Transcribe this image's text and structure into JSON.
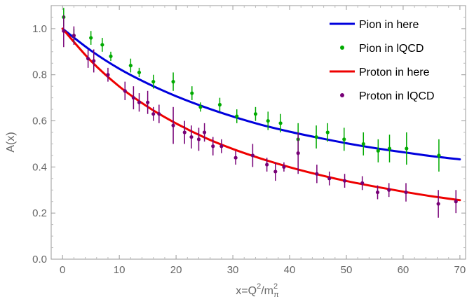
{
  "chart_data": {
    "type": "scatter",
    "title": "",
    "ylabel": "A(x)",
    "xlabel": {
      "prefix": "x=Q",
      "exp1": "2",
      "mid": "/m",
      "sub": "π",
      "exp2": "2"
    },
    "xlim": [
      -2,
      71
    ],
    "ylim": [
      0,
      1.1
    ],
    "xticks": [
      0,
      10,
      20,
      30,
      40,
      50,
      60,
      70
    ],
    "xtick_labels": [
      "0",
      "10",
      "20",
      "30",
      "40",
      "50",
      "60",
      "70"
    ],
    "yticks": [
      0.0,
      0.2,
      0.4,
      0.6,
      0.8,
      1.0
    ],
    "ytick_labels": [
      "0.0",
      "0.2",
      "0.4",
      "0.6",
      "0.8",
      "1.0"
    ],
    "grid": false,
    "legend_position": "top-right",
    "series": [
      {
        "name": "Pion in here",
        "kind": "line",
        "color": "#0000dd",
        "x": [
          0,
          5,
          10,
          15,
          20,
          25,
          30,
          35,
          40,
          45,
          50,
          55,
          60,
          65,
          70
        ],
        "y": [
          1.0,
          0.905,
          0.826,
          0.762,
          0.707,
          0.66,
          0.619,
          0.583,
          0.553,
          0.527,
          0.503,
          0.482,
          0.464,
          0.447,
          0.433
        ]
      },
      {
        "name": "Pion in lQCD",
        "kind": "points",
        "color": "#00aa00",
        "points": [
          {
            "x": 0.2,
            "y": 1.05,
            "err": 0.04
          },
          {
            "x": 2.0,
            "y": 0.97,
            "err": 0.03
          },
          {
            "x": 5.0,
            "y": 0.96,
            "err": 0.03
          },
          {
            "x": 7.0,
            "y": 0.93,
            "err": 0.03
          },
          {
            "x": 8.5,
            "y": 0.88,
            "err": 0.02
          },
          {
            "x": 12.0,
            "y": 0.84,
            "err": 0.03
          },
          {
            "x": 13.5,
            "y": 0.81,
            "err": 0.02
          },
          {
            "x": 16.0,
            "y": 0.77,
            "err": 0.03
          },
          {
            "x": 19.5,
            "y": 0.77,
            "err": 0.04
          },
          {
            "x": 22.8,
            "y": 0.72,
            "err": 0.03
          },
          {
            "x": 24.3,
            "y": 0.66,
            "err": 0.02
          },
          {
            "x": 27.7,
            "y": 0.67,
            "err": 0.03
          },
          {
            "x": 30.7,
            "y": 0.62,
            "err": 0.03
          },
          {
            "x": 34.0,
            "y": 0.63,
            "err": 0.03
          },
          {
            "x": 36.2,
            "y": 0.6,
            "err": 0.04
          },
          {
            "x": 38.4,
            "y": 0.59,
            "err": 0.04
          },
          {
            "x": 41.5,
            "y": 0.52,
            "err": 0.07
          },
          {
            "x": 44.7,
            "y": 0.53,
            "err": 0.05
          },
          {
            "x": 46.7,
            "y": 0.55,
            "err": 0.04
          },
          {
            "x": 49.6,
            "y": 0.52,
            "err": 0.05
          },
          {
            "x": 53.0,
            "y": 0.5,
            "err": 0.05
          },
          {
            "x": 55.6,
            "y": 0.47,
            "err": 0.05
          },
          {
            "x": 57.6,
            "y": 0.48,
            "err": 0.06
          },
          {
            "x": 60.6,
            "y": 0.48,
            "err": 0.07
          },
          {
            "x": 66.3,
            "y": 0.45,
            "err": 0.07
          }
        ]
      },
      {
        "name": "Proton in here",
        "kind": "line",
        "color": "#ee0000",
        "x": [
          0,
          5,
          10,
          15,
          20,
          25,
          30,
          35,
          40,
          45,
          50,
          55,
          60,
          65,
          70
        ],
        "y": [
          1.0,
          0.86,
          0.749,
          0.661,
          0.589,
          0.528,
          0.478,
          0.436,
          0.399,
          0.367,
          0.339,
          0.315,
          0.293,
          0.273,
          0.256
        ]
      },
      {
        "name": "Proton in lQCD",
        "kind": "points",
        "color": "#770077",
        "points": [
          {
            "x": 0.2,
            "y": 0.99,
            "err": 0.07
          },
          {
            "x": 2.0,
            "y": 0.97,
            "err": 0.04
          },
          {
            "x": 4.5,
            "y": 0.87,
            "err": 0.04
          },
          {
            "x": 5.5,
            "y": 0.86,
            "err": 0.05
          },
          {
            "x": 8.0,
            "y": 0.8,
            "err": 0.03
          },
          {
            "x": 11.0,
            "y": 0.73,
            "err": 0.04
          },
          {
            "x": 12.5,
            "y": 0.7,
            "err": 0.05
          },
          {
            "x": 13.5,
            "y": 0.68,
            "err": 0.04
          },
          {
            "x": 15.0,
            "y": 0.68,
            "err": 0.05
          },
          {
            "x": 16.0,
            "y": 0.63,
            "err": 0.03
          },
          {
            "x": 17.0,
            "y": 0.63,
            "err": 0.04
          },
          {
            "x": 19.5,
            "y": 0.58,
            "err": 0.08
          },
          {
            "x": 21.5,
            "y": 0.55,
            "err": 0.05
          },
          {
            "x": 22.7,
            "y": 0.53,
            "err": 0.05
          },
          {
            "x": 24.0,
            "y": 0.52,
            "err": 0.05
          },
          {
            "x": 25.0,
            "y": 0.55,
            "err": 0.04
          },
          {
            "x": 26.5,
            "y": 0.49,
            "err": 0.04
          },
          {
            "x": 28.0,
            "y": 0.49,
            "err": 0.03
          },
          {
            "x": 30.5,
            "y": 0.44,
            "err": 0.03
          },
          {
            "x": 33.5,
            "y": 0.45,
            "err": 0.05
          },
          {
            "x": 36.0,
            "y": 0.41,
            "err": 0.03
          },
          {
            "x": 37.5,
            "y": 0.38,
            "err": 0.04
          },
          {
            "x": 39.0,
            "y": 0.4,
            "err": 0.02
          },
          {
            "x": 41.5,
            "y": 0.46,
            "err": 0.09
          },
          {
            "x": 44.8,
            "y": 0.37,
            "err": 0.04
          },
          {
            "x": 47.0,
            "y": 0.35,
            "err": 0.03
          },
          {
            "x": 49.7,
            "y": 0.34,
            "err": 0.03
          },
          {
            "x": 52.8,
            "y": 0.33,
            "err": 0.03
          },
          {
            "x": 55.5,
            "y": 0.29,
            "err": 0.03
          },
          {
            "x": 57.5,
            "y": 0.3,
            "err": 0.03
          },
          {
            "x": 60.5,
            "y": 0.29,
            "err": 0.04
          },
          {
            "x": 66.2,
            "y": 0.24,
            "err": 0.06
          },
          {
            "x": 69.3,
            "y": 0.25,
            "err": 0.05
          }
        ]
      }
    ]
  }
}
